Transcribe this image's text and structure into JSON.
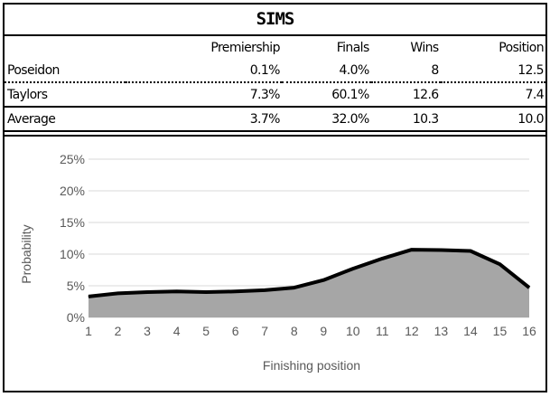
{
  "title": "SIMS",
  "table": {
    "headers": [
      "",
      "Premiership",
      "Finals",
      "Wins",
      "Position"
    ],
    "rows": [
      {
        "name": "Poseidon",
        "premiership": "0.1%",
        "finals": "4.0%",
        "wins": "8",
        "position": "12.5"
      },
      {
        "name": "Taylors",
        "premiership": "7.3%",
        "finals": "60.1%",
        "wins": "12.6",
        "position": "7.4"
      },
      {
        "name": "Average",
        "premiership": "3.7%",
        "finals": "32.0%",
        "wins": "10.3",
        "position": "10.0"
      }
    ]
  },
  "chart_data": {
    "type": "area",
    "x": [
      1,
      2,
      3,
      4,
      5,
      6,
      7,
      8,
      9,
      10,
      11,
      12,
      13,
      14,
      15,
      16
    ],
    "series": [
      {
        "values": [
          3.3,
          3.8,
          4.0,
          4.1,
          4.0,
          4.1,
          4.3,
          4.7,
          5.9,
          7.7,
          9.3,
          10.7,
          10.65,
          10.5,
          8.4,
          4.7
        ]
      }
    ],
    "xlabel": "Finishing position",
    "ylabel": "Probability",
    "ylim": [
      0,
      25
    ],
    "yticks": [
      "0%",
      "5%",
      "10%",
      "15%",
      "20%",
      "25%"
    ],
    "grid": true,
    "fill_color": "#a6a6a6",
    "line_color": "#000000",
    "grid_color": "#d9d9d9"
  }
}
